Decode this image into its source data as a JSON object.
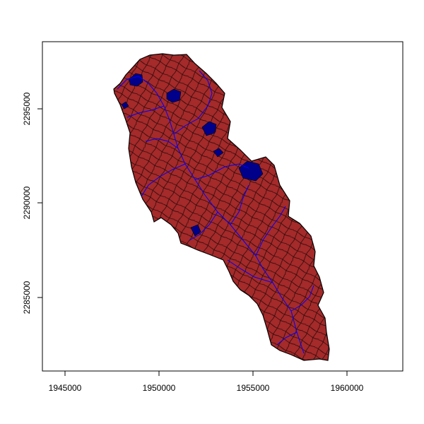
{
  "plot": {
    "x_ticks": [
      "1945000",
      "1950000",
      "1955000",
      "1960000"
    ],
    "y_ticks": [
      "2285000",
      "2290000",
      "2295000"
    ]
  },
  "colors": {
    "catchment_fill": "#a52a2a",
    "lake_fill": "#00008b",
    "stream": "#0000ff",
    "outline": "#000000"
  }
}
